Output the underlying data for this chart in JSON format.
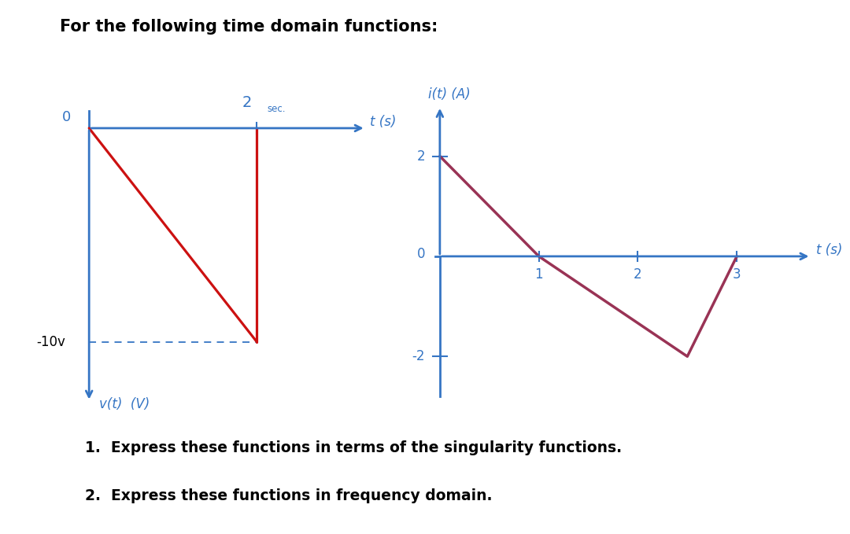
{
  "title": "For the following time domain functions:",
  "title_fontsize": 15,
  "title_fontweight": "bold",
  "background_color": "#ffffff",
  "graph1": {
    "origin_label": "0",
    "t_label": "t (s)",
    "t_sec_label": "2",
    "t_sec_sub": "sec.",
    "y_label": "v(t)  (V)",
    "y_level_label": "-10v",
    "blue_color": "#3575c4",
    "red_color": "#cc1111",
    "xlim": [
      -0.15,
      3.5
    ],
    "ylim": [
      -13.5,
      1.5
    ]
  },
  "graph2": {
    "ylabel": "i(t) (A)",
    "xlabel": "t (s)",
    "blue_color": "#3575c4",
    "red_color": "#993355",
    "red_points_x": [
      0,
      1,
      2.5,
      3
    ],
    "red_points_y": [
      2,
      0,
      -2,
      0
    ],
    "xticks": [
      1,
      2,
      3
    ],
    "yticks": [
      2,
      -2
    ],
    "xlim": [
      -0.15,
      3.8
    ],
    "ylim": [
      -3.2,
      3.2
    ]
  },
  "text1": "1.  Express these functions in terms of the singularity functions.",
  "text2": "2.  Express these functions in frequency domain.",
  "text_fontsize": 13.5,
  "text_fontweight": "bold"
}
